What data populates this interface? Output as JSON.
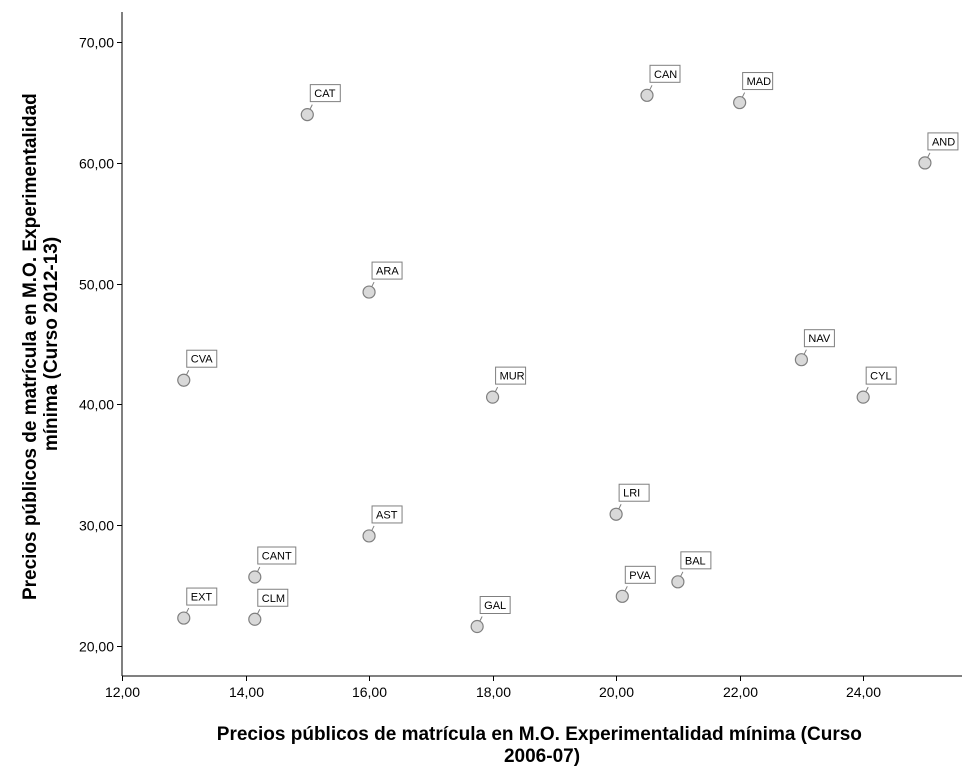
{
  "chart_data": {
    "type": "scatter",
    "xlabel_lines": [
      "Precios públicos de matrícula en M.O. Experimentalidad mínima (Curso",
      "2006-07)"
    ],
    "ylabel_lines": [
      "Precios públicos de matrícula en M.O. Experimentalidad",
      "mínima (Curso 2012-13)"
    ],
    "xlim": [
      12,
      25.6
    ],
    "ylim": [
      17.5,
      72.5
    ],
    "x_ticks": [
      12,
      14,
      16,
      18,
      20,
      22,
      24
    ],
    "y_ticks": [
      20,
      30,
      40,
      50,
      60,
      70
    ],
    "x_tick_labels": [
      "12,00",
      "14,00",
      "16,00",
      "18,00",
      "20,00",
      "22,00",
      "24,00"
    ],
    "y_tick_labels": [
      "20,00",
      "30,00",
      "40,00",
      "50,00",
      "60,00",
      "70,00"
    ],
    "grid": false,
    "legend": false,
    "marker_color": "#d9d9d9",
    "marker_stroke": "#7f7f7f",
    "points": [
      {
        "label": "CAT",
        "x": 15.0,
        "y": 64.0
      },
      {
        "label": "CAN",
        "x": 20.5,
        "y": 65.6
      },
      {
        "label": "MAD",
        "x": 22.0,
        "y": 65.0
      },
      {
        "label": "AND",
        "x": 25.0,
        "y": 60.0
      },
      {
        "label": "ARA",
        "x": 16.0,
        "y": 49.3
      },
      {
        "label": "NAV",
        "x": 23.0,
        "y": 43.7
      },
      {
        "label": "CVA",
        "x": 13.0,
        "y": 42.0
      },
      {
        "label": "MUR",
        "x": 18.0,
        "y": 40.6
      },
      {
        "label": "CYL",
        "x": 24.0,
        "y": 40.6
      },
      {
        "label": "LRI",
        "x": 20.0,
        "y": 30.9
      },
      {
        "label": "AST",
        "x": 16.0,
        "y": 29.1
      },
      {
        "label": "CANT",
        "x": 14.15,
        "y": 25.7
      },
      {
        "label": "BAL",
        "x": 21.0,
        "y": 25.3
      },
      {
        "label": "PVA",
        "x": 20.1,
        "y": 24.1
      },
      {
        "label": "EXT",
        "x": 13.0,
        "y": 22.3
      },
      {
        "label": "CLM",
        "x": 14.15,
        "y": 22.2
      },
      {
        "label": "GAL",
        "x": 17.75,
        "y": 21.6
      }
    ]
  }
}
